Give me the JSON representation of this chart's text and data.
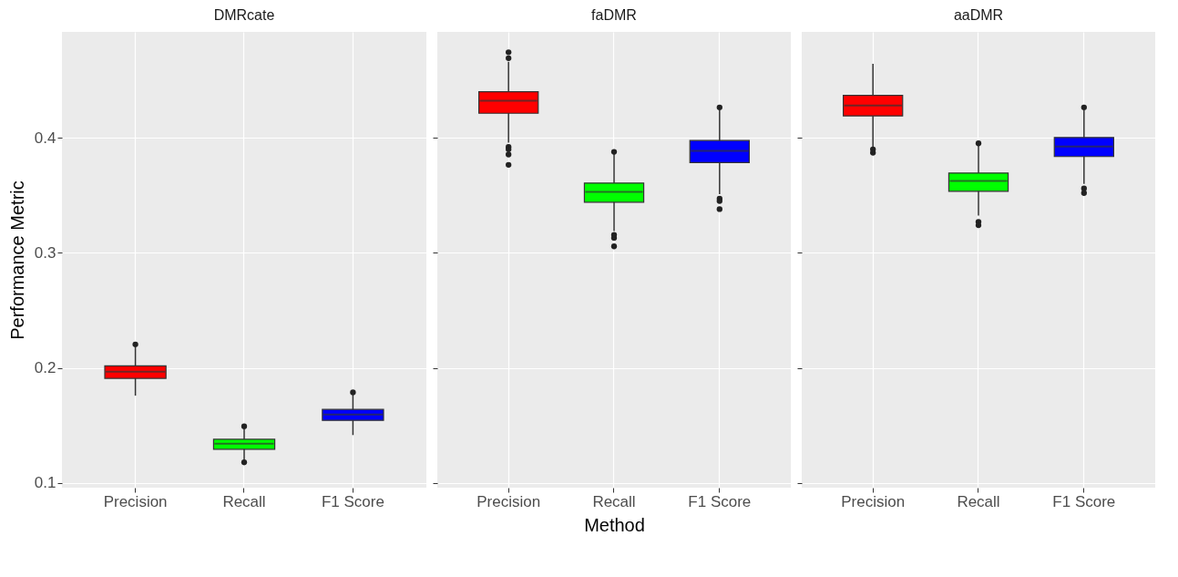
{
  "chart_data": [
    {
      "type": "box",
      "title": "DMRcate",
      "ylabel": "Performance Metric",
      "categories": [
        "Precision",
        "Recall",
        "F1 Score"
      ],
      "colors": [
        "#ff0000",
        "#00ff00",
        "#0000ff"
      ],
      "ylim": [
        0.096,
        0.492
      ],
      "yticks": [
        0.1,
        0.2,
        0.3,
        0.4
      ],
      "grid": true,
      "boxes": [
        {
          "low": 0.176,
          "q1": 0.191,
          "median": 0.1967,
          "q3": 0.2018,
          "high": 0.218,
          "outliers": [
            0.2205
          ]
        },
        {
          "low": 0.12,
          "q1": 0.1294,
          "median": 0.1343,
          "q3": 0.138,
          "high": 0.148,
          "outliers": [
            0.1493,
            0.118
          ]
        },
        {
          "low": 0.1417,
          "q1": 0.1545,
          "median": 0.1596,
          "q3": 0.164,
          "high": 0.177,
          "outliers": [
            0.1788
          ]
        }
      ]
    },
    {
      "type": "box",
      "title": "faDMR",
      "xlabel": "Method",
      "categories": [
        "Precision",
        "Recall",
        "F1 Score"
      ],
      "colors": [
        "#ff0000",
        "#00ff00",
        "#0000ff"
      ],
      "ylim": [
        0.096,
        0.492
      ],
      "yticks": [
        0.1,
        0.2,
        0.3,
        0.4
      ],
      "grid": true,
      "tick_labels": "x",
      "boxes": [
        {
          "low": 0.3957,
          "q1": 0.4213,
          "median": 0.4323,
          "q3": 0.44,
          "high": 0.466,
          "outliers": [
            0.4743,
            0.4692,
            0.392,
            0.39,
            0.3855,
            0.3765
          ]
        },
        {
          "low": 0.319,
          "q1": 0.344,
          "median": 0.353,
          "q3": 0.3607,
          "high": 0.386,
          "outliers": [
            0.3878,
            0.3157,
            0.3131,
            0.3057
          ]
        },
        {
          "low": 0.351,
          "q1": 0.3784,
          "median": 0.3886,
          "q3": 0.3976,
          "high": 0.424,
          "outliers": [
            0.4264,
            0.3471,
            0.345,
            0.338
          ]
        }
      ]
    },
    {
      "type": "box",
      "title": "aaDMR",
      "categories": [
        "Precision",
        "Recall",
        "F1 Score"
      ],
      "colors": [
        "#ff0000",
        "#00ff00",
        "#0000ff"
      ],
      "ylim": [
        0.096,
        0.492
      ],
      "yticks": [
        0.1,
        0.2,
        0.3,
        0.4
      ],
      "grid": true,
      "tick_labels": "x",
      "boxes": [
        {
          "low": 0.392,
          "q1": 0.419,
          "median": 0.428,
          "q3": 0.4369,
          "high": 0.4643,
          "outliers": [
            0.39,
            0.387
          ]
        },
        {
          "low": 0.3325,
          "q1": 0.3535,
          "median": 0.3625,
          "q3": 0.3694,
          "high": 0.393,
          "outliers": [
            0.3952,
            0.327,
            0.324
          ]
        },
        {
          "low": 0.36,
          "q1": 0.3837,
          "median": 0.3924,
          "q3": 0.4003,
          "high": 0.424,
          "outliers": [
            0.4264,
            0.356,
            0.352
          ]
        }
      ]
    }
  ]
}
